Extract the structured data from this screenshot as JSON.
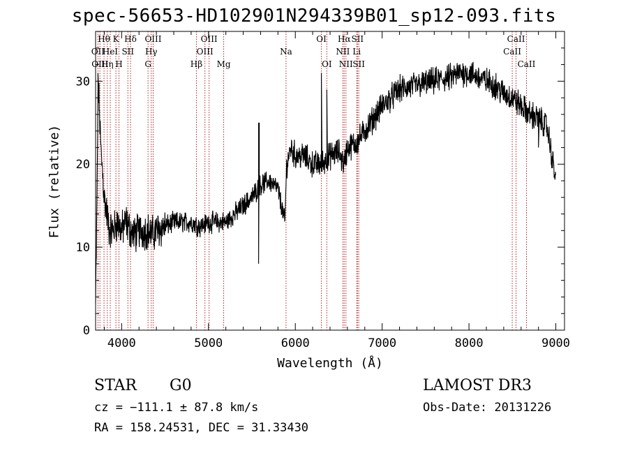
{
  "title": "spec-56653-HD102901N294339B01_sp12-093.fits",
  "info": {
    "obj_class": "STAR",
    "subclass": "G0",
    "survey": "LAMOST DR3",
    "cz": "cz = −111.1 ± 87.8 km/s",
    "obs_date": "Obs-Date: 20131226",
    "radec": "RA = 158.24531, DEC =  31.33430"
  },
  "chart_data": {
    "type": "line",
    "title": "spec-56653-HD102901N294339B01_sp12-093.fits",
    "xlabel": "Wavelength (Å)",
    "ylabel": "Flux (relative)",
    "xlim": [
      3700,
      9100
    ],
    "ylim": [
      0,
      36
    ],
    "xticks": [
      4000,
      5000,
      6000,
      7000,
      8000,
      9000
    ],
    "yticks": [
      0,
      10,
      20,
      30
    ],
    "grid": false,
    "series": [
      {
        "color": "#000000",
        "x": [
          3700,
          3710,
          3730,
          3760,
          3800,
          3830,
          3860,
          3900,
          3950,
          4000,
          4050,
          4100,
          4150,
          4200,
          4250,
          4300,
          4350,
          4400,
          4500,
          4600,
          4700,
          4800,
          4900,
          5000,
          5100,
          5200,
          5300,
          5400,
          5500,
          5600,
          5700,
          5800,
          5880,
          5900,
          5950,
          6000,
          6100,
          6200,
          6300,
          6400,
          6500,
          6560,
          6600,
          6700,
          6800,
          7000,
          7200,
          7400,
          7600,
          7800,
          7900,
          8000,
          8100,
          8200,
          8300,
          8400,
          8500,
          8600,
          8700,
          8800,
          8900,
          9000
        ],
        "y": [
          3,
          10,
          30,
          22,
          16,
          14,
          12,
          12,
          13,
          12,
          13,
          12,
          11.5,
          12,
          12,
          12,
          11.5,
          12,
          12.5,
          13,
          13,
          13,
          12.5,
          13,
          13,
          13,
          14,
          15,
          16,
          17.5,
          18,
          17,
          13,
          20,
          22,
          21,
          21,
          20,
          20,
          21,
          21.5,
          20,
          22,
          22.5,
          24,
          27,
          29,
          29.5,
          30,
          30.5,
          31,
          31,
          30.5,
          30,
          29.5,
          28.5,
          28,
          27,
          26,
          25.5,
          24.5,
          18
        ]
      }
    ],
    "spikes": [
      {
        "x": 5577,
        "y": 25
      },
      {
        "x": 5577,
        "y": 8
      },
      {
        "x": 6300,
        "y": 31
      },
      {
        "x": 6363,
        "y": 29
      },
      {
        "x": 3727,
        "y": 31
      },
      {
        "x": 8800,
        "y": 22
      }
    ],
    "line_markers": [
      {
        "x": 3727,
        "label": "OII",
        "row": 1
      },
      {
        "x": 3750,
        "label": "OIII",
        "row": 2
      },
      {
        "x": 3797,
        "label": "Hθ",
        "row": 0
      },
      {
        "x": 3835,
        "label": "Hη",
        "row": 2
      },
      {
        "x": 3869,
        "label": "HeI",
        "row": 1
      },
      {
        "x": 3934,
        "label": "K",
        "row": 0
      },
      {
        "x": 3969,
        "label": "H",
        "row": 2
      },
      {
        "x": 4072,
        "label": "SII",
        "row": 1
      },
      {
        "x": 4102,
        "label": "Hδ",
        "row": 0
      },
      {
        "x": 4304,
        "label": "G",
        "row": 2
      },
      {
        "x": 4341,
        "label": "Hγ",
        "row": 1
      },
      {
        "x": 4363,
        "label": "OIII",
        "row": 0
      },
      {
        "x": 4861,
        "label": "Hβ",
        "row": 2
      },
      {
        "x": 4959,
        "label": "OIII",
        "row": 1
      },
      {
        "x": 5007,
        "label": "OIII",
        "row": 0
      },
      {
        "x": 5175,
        "label": "Mg",
        "row": 2
      },
      {
        "x": 5893,
        "label": "Na",
        "row": 1
      },
      {
        "x": 6300,
        "label": "OI",
        "row": 0
      },
      {
        "x": 6363,
        "label": "OI",
        "row": 2
      },
      {
        "x": 6548,
        "label": "NII",
        "row": 1
      },
      {
        "x": 6563,
        "label": "Hα",
        "row": 0
      },
      {
        "x": 6583,
        "label": "NII",
        "row": 2
      },
      {
        "x": 6707,
        "label": "Li",
        "row": 1
      },
      {
        "x": 6716,
        "label": "SII",
        "row": 0
      },
      {
        "x": 6731,
        "label": "SII",
        "row": 2
      },
      {
        "x": 8498,
        "label": "CaII",
        "row": 1
      },
      {
        "x": 8542,
        "label": "CaII",
        "row": 0
      },
      {
        "x": 8662,
        "label": "CaII",
        "row": 2
      }
    ],
    "marker_color": "#b22222"
  }
}
